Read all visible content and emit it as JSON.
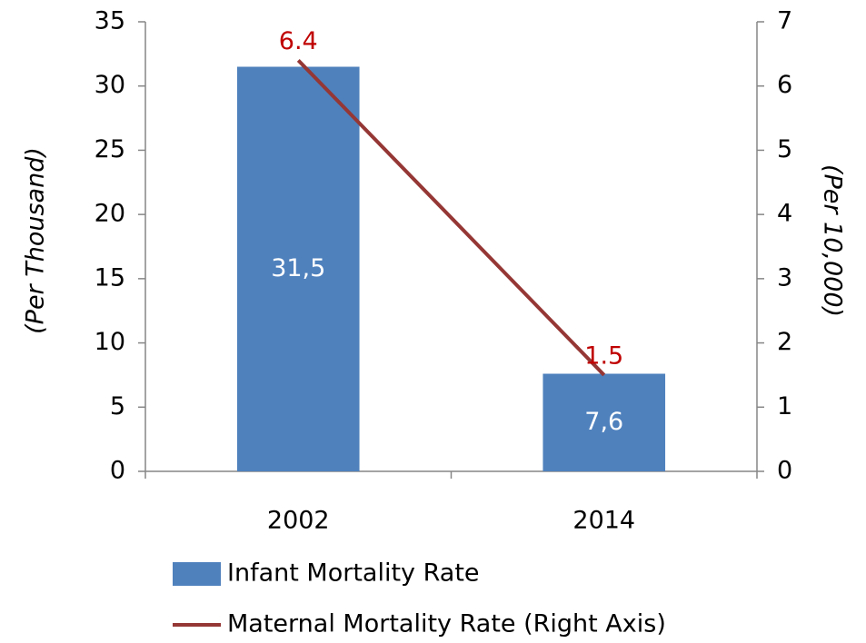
{
  "chart_data": {
    "type": "bar",
    "categories": [
      "2002",
      "2014"
    ],
    "series": [
      {
        "name": "Infant Mortality Rate",
        "type": "bar",
        "color": "#4f81bd",
        "values": [
          31.5,
          7.6
        ],
        "value_labels": [
          "31,5",
          "7,6"
        ],
        "label_color": "#ffffff"
      },
      {
        "name": "Maternal Mortality Rate (Right Axis)",
        "type": "line",
        "axis": "y2",
        "color": "#953735",
        "values": [
          6.4,
          1.5
        ],
        "label_color": "#c00000"
      }
    ],
    "ylabel": "(Per Thousand)",
    "y2label": "(Per 10,000)",
    "ylim": [
      0,
      35
    ],
    "yticks": [
      0,
      5,
      10,
      15,
      20,
      25,
      30,
      35
    ],
    "y2lim": [
      0,
      7
    ],
    "y2ticks": [
      0,
      1,
      2,
      3,
      4,
      5,
      6,
      7
    ],
    "legend": "bottom"
  }
}
